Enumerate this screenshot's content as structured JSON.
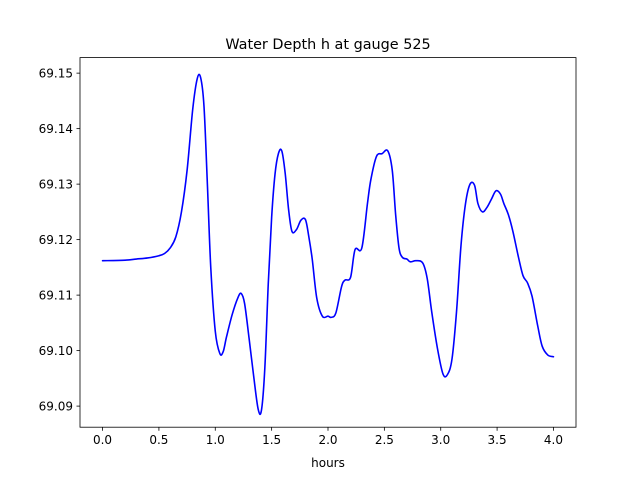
{
  "chart_data": {
    "type": "line",
    "title": "Water Depth h at gauge 525",
    "xlabel": "hours",
    "ylabel": "",
    "xlim": [
      -0.2,
      4.2
    ],
    "ylim": [
      69.0862,
      69.1528
    ],
    "grid": false,
    "x_ticks": [
      {
        "value": 0.0,
        "label": "0.0"
      },
      {
        "value": 0.5,
        "label": "0.5"
      },
      {
        "value": 1.0,
        "label": "1.0"
      },
      {
        "value": 1.5,
        "label": "1.5"
      },
      {
        "value": 2.0,
        "label": "2.0"
      },
      {
        "value": 2.5,
        "label": "2.5"
      },
      {
        "value": 3.0,
        "label": "3.0"
      },
      {
        "value": 3.5,
        "label": "3.5"
      },
      {
        "value": 4.0,
        "label": "4.0"
      }
    ],
    "y_ticks": [
      {
        "value": 69.09,
        "label": "69.09"
      },
      {
        "value": 69.1,
        "label": "69.10"
      },
      {
        "value": 69.11,
        "label": "69.11"
      },
      {
        "value": 69.12,
        "label": "69.12"
      },
      {
        "value": 69.13,
        "label": "69.13"
      },
      {
        "value": 69.14,
        "label": "69.14"
      },
      {
        "value": 69.15,
        "label": "69.15"
      }
    ],
    "series": [
      {
        "color": "#0000ff",
        "x": [
          0.0,
          0.2,
          0.3,
          0.4,
          0.5,
          0.55,
          0.6,
          0.65,
          0.7,
          0.75,
          0.8,
          0.84,
          0.87,
          0.9,
          0.93,
          0.96,
          1.0,
          1.04,
          1.07,
          1.1,
          1.15,
          1.2,
          1.23,
          1.26,
          1.3,
          1.34,
          1.38,
          1.41,
          1.44,
          1.47,
          1.5,
          1.53,
          1.56,
          1.59,
          1.62,
          1.65,
          1.68,
          1.72,
          1.76,
          1.8,
          1.83,
          1.86,
          1.9,
          1.95,
          2.0,
          2.03,
          2.07,
          2.12,
          2.15,
          2.2,
          2.24,
          2.3,
          2.35,
          2.38,
          2.43,
          2.48,
          2.53,
          2.57,
          2.6,
          2.63,
          2.66,
          2.7,
          2.73,
          2.78,
          2.84,
          2.88,
          2.92,
          2.97,
          3.02,
          3.06,
          3.1,
          3.14,
          3.18,
          3.22,
          3.26,
          3.3,
          3.33,
          3.37,
          3.41,
          3.45,
          3.49,
          3.53,
          3.56,
          3.6,
          3.64,
          3.69,
          3.73,
          3.77,
          3.81,
          3.86,
          3.9,
          3.95,
          4.0
        ],
        "y": [
          69.1162,
          69.1163,
          69.1165,
          69.1167,
          69.1171,
          69.1175,
          69.1185,
          69.1205,
          69.125,
          69.1325,
          69.1435,
          69.149,
          69.1492,
          69.144,
          69.13,
          69.115,
          69.1035,
          69.0995,
          69.0998,
          69.1025,
          69.1065,
          69.1095,
          69.1103,
          69.1085,
          69.1022,
          69.0955,
          69.0895,
          69.0893,
          69.097,
          69.112,
          69.124,
          69.1318,
          69.1355,
          69.136,
          69.132,
          69.1255,
          69.1215,
          69.1218,
          69.1235,
          69.1236,
          69.1205,
          69.1165,
          69.1095,
          69.1062,
          69.1062,
          69.106,
          69.1068,
          69.1115,
          69.1127,
          69.1132,
          69.1182,
          69.1185,
          69.1265,
          69.1308,
          69.135,
          69.1355,
          69.136,
          69.1325,
          69.1245,
          69.1185,
          69.1168,
          69.1165,
          69.116,
          69.1162,
          69.1158,
          69.113,
          69.107,
          69.1005,
          69.0958,
          69.0957,
          69.0985,
          69.107,
          69.119,
          69.1265,
          69.13,
          69.1298,
          69.1265,
          69.125,
          69.1258,
          69.1273,
          69.1288,
          69.1282,
          69.1265,
          69.1245,
          69.1215,
          69.1168,
          69.1135,
          69.1122,
          69.1098,
          69.1045,
          69.1008,
          69.0992,
          69.0989
        ]
      }
    ]
  }
}
